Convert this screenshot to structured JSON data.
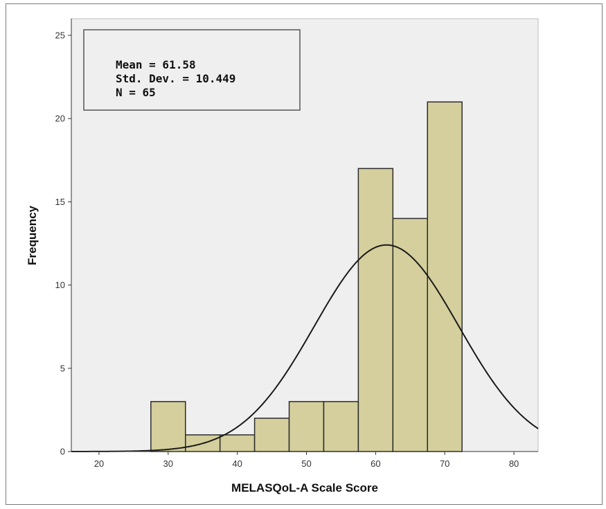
{
  "chart_data": {
    "type": "bar",
    "subtype": "histogram",
    "bin_width": 5,
    "bins": [
      {
        "start": 27.5,
        "end": 32.5,
        "value": 3
      },
      {
        "start": 32.5,
        "end": 37.5,
        "value": 1
      },
      {
        "start": 37.5,
        "end": 42.5,
        "value": 1
      },
      {
        "start": 42.5,
        "end": 47.5,
        "value": 2
      },
      {
        "start": 47.5,
        "end": 52.5,
        "value": 3
      },
      {
        "start": 52.5,
        "end": 57.5,
        "value": 3
      },
      {
        "start": 57.5,
        "end": 62.5,
        "value": 17
      },
      {
        "start": 62.5,
        "end": 67.5,
        "value": 14
      },
      {
        "start": 67.5,
        "end": 72.5,
        "value": 21
      }
    ],
    "normal_curve": {
      "mean": 61.58,
      "sd": 10.449,
      "n": 65
    },
    "xlabel": "MELASQoL-A Scale Score",
    "ylabel": "Frequency",
    "xlim": [
      16,
      83.5
    ],
    "ylim": [
      0,
      26
    ],
    "xticks": [
      "20",
      "30",
      "40",
      "50",
      "60",
      "70",
      "80"
    ],
    "yticks": [
      "0",
      "5",
      "10",
      "15",
      "20",
      "25"
    ],
    "grid": false,
    "stats_box": {
      "mean_line": "Mean = 61.58",
      "sd_line": "Std. Dev. = 10.449",
      "n_line": "N = 65"
    },
    "colors": {
      "plot_bg": "#efefef",
      "bar_fill": "#d4cf9c",
      "bar_stroke": "#2b2b2b",
      "curve": "#1a1a1a"
    }
  }
}
